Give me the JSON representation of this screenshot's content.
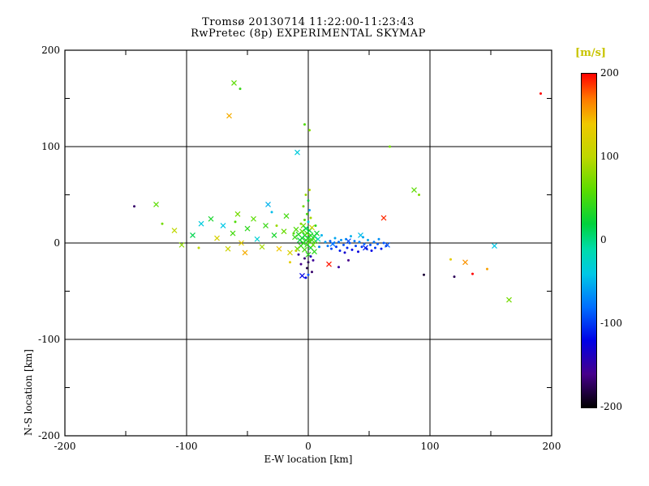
{
  "title": {
    "line1": "Tromsø 20130714 11:22:00-11:23:43",
    "line2": "RwPretec (8p) EXPERIMENTAL SKYMAP"
  },
  "axes": {
    "xlabel": "E-W location [km]",
    "ylabel": "N-S location [km]",
    "x_tick_labels": [
      "-200",
      "-100",
      "0",
      "100",
      "200"
    ],
    "y_tick_labels": [
      "200",
      "100",
      "0",
      "-100",
      "-200"
    ]
  },
  "colorbar": {
    "unit_label": "[m/s]",
    "unit_color": "#c8c400",
    "tick_labels": [
      "200",
      "100",
      "0",
      "-100",
      "-200"
    ]
  },
  "chart_data": {
    "type": "scatter",
    "title": "Tromsø 20130714 11:22:00-11:23:43 / RwPretec (8p) EXPERIMENTAL SKYMAP",
    "xlabel": "E-W location [km]",
    "ylabel": "N-S location [km]",
    "color_unit": "m/s",
    "xlim": [
      -200,
      200
    ],
    "ylim": [
      -200,
      200
    ],
    "color_range": [
      -200,
      200
    ],
    "x_ticks": [
      -200,
      -100,
      0,
      100,
      200
    ],
    "y_ticks": [
      -200,
      -100,
      0,
      100,
      200
    ],
    "minor_ticks": [
      -150,
      -50,
      50,
      150
    ],
    "grid": true,
    "legend_position": "right-colorbar",
    "colormap": [
      [
        -200,
        "#000000"
      ],
      [
        -160,
        "#46008c"
      ],
      [
        -120,
        "#0000e6"
      ],
      [
        -80,
        "#006eff"
      ],
      [
        -40,
        "#00c8e6"
      ],
      [
        -10,
        "#00dcaa"
      ],
      [
        20,
        "#00d23c"
      ],
      [
        60,
        "#5adc00"
      ],
      [
        100,
        "#bed700"
      ],
      [
        140,
        "#f0c800"
      ],
      [
        170,
        "#ff7800"
      ],
      [
        200,
        "#ff0000"
      ]
    ],
    "points": [
      [
        -10,
        14,
        55,
        "x"
      ],
      [
        -8,
        9,
        35,
        "x"
      ],
      [
        -7,
        3,
        20,
        "x"
      ],
      [
        -6,
        -3,
        45,
        "x"
      ],
      [
        -5,
        12,
        60,
        "x"
      ],
      [
        -5,
        5,
        30,
        "x"
      ],
      [
        -4,
        0,
        40,
        "x"
      ],
      [
        -4,
        18,
        70,
        "x"
      ],
      [
        -3,
        8,
        25,
        "x"
      ],
      [
        -3,
        -7,
        50,
        "x"
      ],
      [
        -2,
        3,
        35,
        "x"
      ],
      [
        -2,
        15,
        15,
        "x"
      ],
      [
        -1,
        -2,
        45,
        "x"
      ],
      [
        -1,
        10,
        60,
        "x"
      ],
      [
        0,
        5,
        30,
        "x"
      ],
      [
        0,
        -12,
        40,
        "x"
      ],
      [
        1,
        13,
        20,
        "x"
      ],
      [
        1,
        2,
        55,
        "x"
      ],
      [
        2,
        8,
        35,
        "x"
      ],
      [
        2,
        -5,
        25,
        "x"
      ],
      [
        3,
        3,
        45,
        "x"
      ],
      [
        3,
        16,
        110,
        "x"
      ],
      [
        4,
        -2,
        60,
        "x"
      ],
      [
        5,
        7,
        30,
        "x"
      ],
      [
        5,
        -9,
        40,
        "x"
      ],
      [
        6,
        2,
        50,
        "x"
      ],
      [
        -9,
        -6,
        65,
        "x"
      ],
      [
        7,
        10,
        25,
        "x"
      ],
      [
        -11,
        6,
        45,
        "x"
      ],
      [
        8,
        4,
        -20,
        "x"
      ],
      [
        -6,
        20,
        80,
        "d"
      ],
      [
        -3,
        24,
        60,
        "d"
      ],
      [
        0,
        22,
        -40,
        "d"
      ],
      [
        2,
        26,
        90,
        "d"
      ],
      [
        -1,
        30,
        50,
        "d"
      ],
      [
        1,
        34,
        -60,
        "d"
      ],
      [
        -4,
        38,
        70,
        "d"
      ],
      [
        0,
        44,
        20,
        "d"
      ],
      [
        -2,
        50,
        85,
        "d"
      ],
      [
        1,
        55,
        95,
        "d"
      ],
      [
        -8,
        -12,
        -150,
        "d"
      ],
      [
        -3,
        -16,
        -165,
        "d"
      ],
      [
        0,
        -20,
        -175,
        "d"
      ],
      [
        2,
        -14,
        -140,
        "d"
      ],
      [
        -1,
        -26,
        -180,
        "d"
      ],
      [
        4,
        -18,
        -155,
        "d"
      ],
      [
        -6,
        -22,
        -160,
        "d"
      ],
      [
        3,
        -30,
        -170,
        "d"
      ],
      [
        -2,
        -36,
        -120,
        "d"
      ],
      [
        0,
        -33,
        -90,
        "d"
      ],
      [
        6,
        18,
        40,
        "d"
      ],
      [
        -12,
        10,
        55,
        "d"
      ],
      [
        9,
        -4,
        -70,
        "d"
      ],
      [
        -10,
        -8,
        110,
        "d"
      ],
      [
        11,
        8,
        -50,
        "d"
      ],
      [
        14,
        1,
        -60,
        "d"
      ],
      [
        16,
        -3,
        -75,
        "d"
      ],
      [
        18,
        2,
        -85,
        "d"
      ],
      [
        19,
        -6,
        -95,
        "d"
      ],
      [
        21,
        0,
        -70,
        "d"
      ],
      [
        22,
        5,
        -55,
        "d"
      ],
      [
        23,
        -4,
        -100,
        "d"
      ],
      [
        25,
        1,
        -80,
        "d"
      ],
      [
        26,
        -8,
        -110,
        "d"
      ],
      [
        27,
        3,
        -65,
        "d"
      ],
      [
        29,
        -2,
        -90,
        "d"
      ],
      [
        30,
        -10,
        -130,
        "d"
      ],
      [
        31,
        4,
        -60,
        "d"
      ],
      [
        32,
        -5,
        -105,
        "d"
      ],
      [
        34,
        0,
        -85,
        "d"
      ],
      [
        35,
        7,
        -50,
        "d"
      ],
      [
        36,
        -7,
        -115,
        "d"
      ],
      [
        38,
        2,
        -75,
        "d"
      ],
      [
        39,
        -3,
        -95,
        "d"
      ],
      [
        41,
        -9,
        -125,
        "d"
      ],
      [
        42,
        1,
        -70,
        "d"
      ],
      [
        44,
        -4,
        -100,
        "d"
      ],
      [
        45,
        6,
        -60,
        "d"
      ],
      [
        46,
        -1,
        -85,
        "d"
      ],
      [
        48,
        -6,
        -110,
        "d"
      ],
      [
        49,
        3,
        -55,
        "d"
      ],
      [
        51,
        -2,
        -90,
        "d"
      ],
      [
        52,
        -8,
        -120,
        "d"
      ],
      [
        54,
        1,
        -75,
        "d"
      ],
      [
        55,
        -5,
        -100,
        "d"
      ],
      [
        57,
        -1,
        -85,
        "d"
      ],
      [
        58,
        4,
        -65,
        "d"
      ],
      [
        60,
        -6,
        -110,
        "d"
      ],
      [
        62,
        0,
        -90,
        "d"
      ],
      [
        64,
        -3,
        -100,
        "d"
      ],
      [
        20,
        -1,
        -80,
        "x"
      ],
      [
        33,
        2,
        -95,
        "x"
      ],
      [
        47,
        -5,
        -110,
        "x"
      ],
      [
        65,
        -2,
        -90,
        "x"
      ],
      [
        43,
        8,
        -45,
        "x"
      ],
      [
        17,
        -22,
        195,
        "x"
      ],
      [
        62,
        26,
        190,
        "x"
      ],
      [
        -125,
        40,
        60,
        "x"
      ],
      [
        -110,
        13,
        100,
        "x"
      ],
      [
        -104,
        -2,
        80,
        "x"
      ],
      [
        -95,
        8,
        15,
        "x"
      ],
      [
        -88,
        20,
        -35,
        "x"
      ],
      [
        -80,
        25,
        30,
        "x"
      ],
      [
        -75,
        5,
        120,
        "x"
      ],
      [
        -70,
        18,
        -40,
        "x"
      ],
      [
        -66,
        -6,
        110,
        "x"
      ],
      [
        -62,
        10,
        50,
        "x"
      ],
      [
        -58,
        30,
        70,
        "x"
      ],
      [
        -55,
        0,
        130,
        "x"
      ],
      [
        -52,
        -10,
        150,
        "x"
      ],
      [
        -50,
        15,
        40,
        "x"
      ],
      [
        -45,
        25,
        60,
        "x"
      ],
      [
        -42,
        4,
        -30,
        "x"
      ],
      [
        -38,
        -4,
        90,
        "x"
      ],
      [
        -35,
        18,
        45,
        "x"
      ],
      [
        -33,
        40,
        -50,
        "x"
      ],
      [
        -28,
        8,
        30,
        "x"
      ],
      [
        -24,
        -6,
        140,
        "x"
      ],
      [
        -20,
        12,
        65,
        "x"
      ],
      [
        -18,
        28,
        50,
        "x"
      ],
      [
        -15,
        -10,
        120,
        "x"
      ],
      [
        -143,
        38,
        -170,
        "d"
      ],
      [
        -120,
        20,
        70,
        "d"
      ],
      [
        -90,
        -5,
        100,
        "d"
      ],
      [
        -60,
        22,
        55,
        "d"
      ],
      [
        -30,
        32,
        -45,
        "d"
      ],
      [
        -26,
        18,
        85,
        "d"
      ],
      [
        -61,
        166,
        60,
        "x"
      ],
      [
        -56,
        160,
        45,
        "d"
      ],
      [
        -65,
        132,
        150,
        "x"
      ],
      [
        -9,
        94,
        -35,
        "x"
      ],
      [
        -3,
        123,
        55,
        "d"
      ],
      [
        1,
        117,
        75,
        "d"
      ],
      [
        67,
        100,
        70,
        "d"
      ],
      [
        191,
        155,
        200,
        "d"
      ],
      [
        87,
        55,
        60,
        "x"
      ],
      [
        91,
        50,
        75,
        "d"
      ],
      [
        95,
        -33,
        -185,
        "d"
      ],
      [
        120,
        -35,
        -175,
        "d"
      ],
      [
        117,
        -17,
        130,
        "d"
      ],
      [
        129,
        -20,
        160,
        "x"
      ],
      [
        135,
        -32,
        200,
        "d"
      ],
      [
        147,
        -27,
        155,
        "d"
      ],
      [
        153,
        -3,
        -40,
        "x"
      ],
      [
        165,
        -59,
        70,
        "x"
      ],
      [
        -5,
        -34,
        -120,
        "x"
      ],
      [
        33,
        -18,
        -160,
        "d"
      ],
      [
        25,
        -25,
        -150,
        "d"
      ],
      [
        -15,
        -20,
        130,
        "d"
      ]
    ]
  }
}
